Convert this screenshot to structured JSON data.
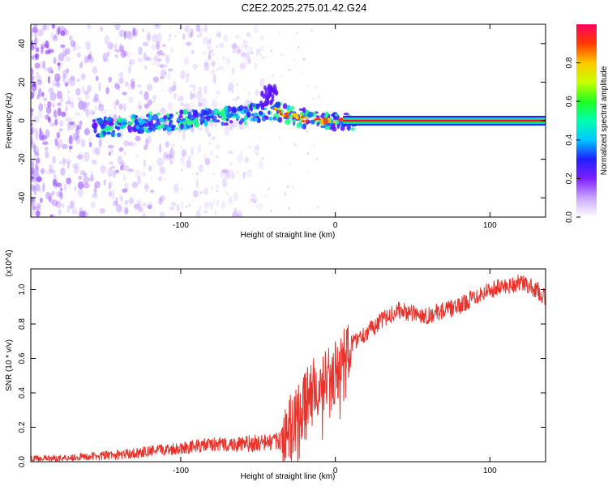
{
  "title": "C2E2.2025.275.01.42.G24",
  "chart_data": [
    {
      "type": "heatmap",
      "title": "C2E2.2025.275.01.42.G24",
      "xlabel": "Height of straight line (km)",
      "ylabel": "Frequency (Hz)",
      "xlim": [
        -197,
        136
      ],
      "ylim": [
        -50,
        50
      ],
      "xticks": [
        -100,
        0,
        100
      ],
      "yticks": [
        -40,
        -20,
        0,
        20,
        40
      ],
      "colorbar": {
        "label": "Normalized spectral amplitude",
        "range": [
          0,
          1
        ],
        "ticks": [
          "0.0",
          "0.2",
          "0.4",
          "0.6",
          "0.8"
        ]
      },
      "ridge": {
        "description_points_x": [
          -157,
          -140,
          -120,
          -100,
          -80,
          -60,
          -45,
          -38,
          -30,
          -20,
          -10,
          0,
          10,
          20,
          60,
          100,
          136
        ],
        "description_points_y": [
          -4,
          -3,
          -1,
          0,
          2,
          3,
          5,
          5,
          3,
          1,
          0,
          0,
          0,
          0,
          0,
          0,
          0
        ]
      }
    },
    {
      "type": "line",
      "title": "",
      "xlabel": "Height of straight line (km)",
      "ylabel": "SNR (10 * v/v)",
      "y_multiplier": "(x10^4)",
      "xlim": [
        -197,
        136
      ],
      "ylim": [
        0,
        1.12
      ],
      "xticks": [
        -100,
        0,
        100
      ],
      "yticks": [
        0.0,
        0.2,
        0.4,
        0.6,
        0.8,
        1.0
      ],
      "series": [
        {
          "name": "SNR",
          "color": "#e8332c",
          "x": [
            -197,
            -180,
            -160,
            -140,
            -120,
            -100,
            -80,
            -60,
            -45,
            -35,
            -30,
            -25,
            -20,
            -15,
            -10,
            -5,
            0,
            5,
            10,
            15,
            20,
            30,
            40,
            50,
            60,
            70,
            80,
            90,
            100,
            110,
            120,
            130,
            136
          ],
          "y": [
            0.02,
            0.02,
            0.03,
            0.04,
            0.06,
            0.08,
            0.1,
            0.1,
            0.11,
            0.12,
            0.2,
            0.25,
            0.33,
            0.42,
            0.45,
            0.48,
            0.52,
            0.6,
            0.68,
            0.72,
            0.75,
            0.82,
            0.88,
            0.86,
            0.85,
            0.88,
            0.9,
            0.96,
            1.0,
            1.02,
            1.04,
            1.0,
            0.95
          ]
        }
      ]
    }
  ]
}
